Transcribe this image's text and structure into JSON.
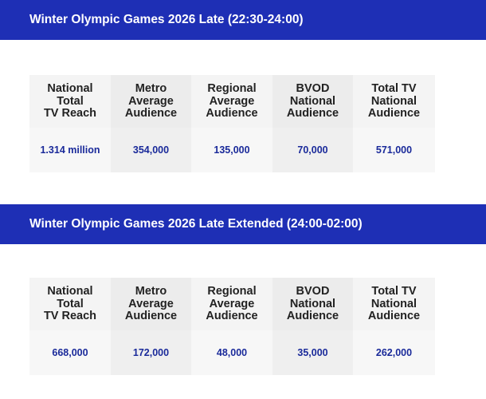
{
  "sections": [
    {
      "title": "Winter Olympic Games 2026 Late (22:30-24:00)",
      "headers": [
        "National\nTotal\nTV Reach",
        "Metro\nAverage\nAudience",
        "Regional\nAverage\nAudience",
        "BVOD\nNational\nAudience",
        "Total TV\nNational\nAudience"
      ],
      "values": [
        "1.314 million",
        "354,000",
        "135,000",
        "70,000",
        "571,000"
      ]
    },
    {
      "title": "Winter Olympic Games 2026 Late Extended (24:00-02:00)",
      "headers": [
        "National\nTotal\nTV Reach",
        "Metro\nAverage\nAudience",
        "Regional\nAverage\nAudience",
        "BVOD\nNational\nAudience",
        "Total TV\nNational\nAudience"
      ],
      "values": [
        "668,000",
        "172,000",
        "48,000",
        "35,000",
        "262,000"
      ]
    }
  ],
  "colors": {
    "banner_bg": "#1e2fb5",
    "banner_text": "#ffffff",
    "header_text": "#222222",
    "value_text": "#1a2a9a"
  }
}
